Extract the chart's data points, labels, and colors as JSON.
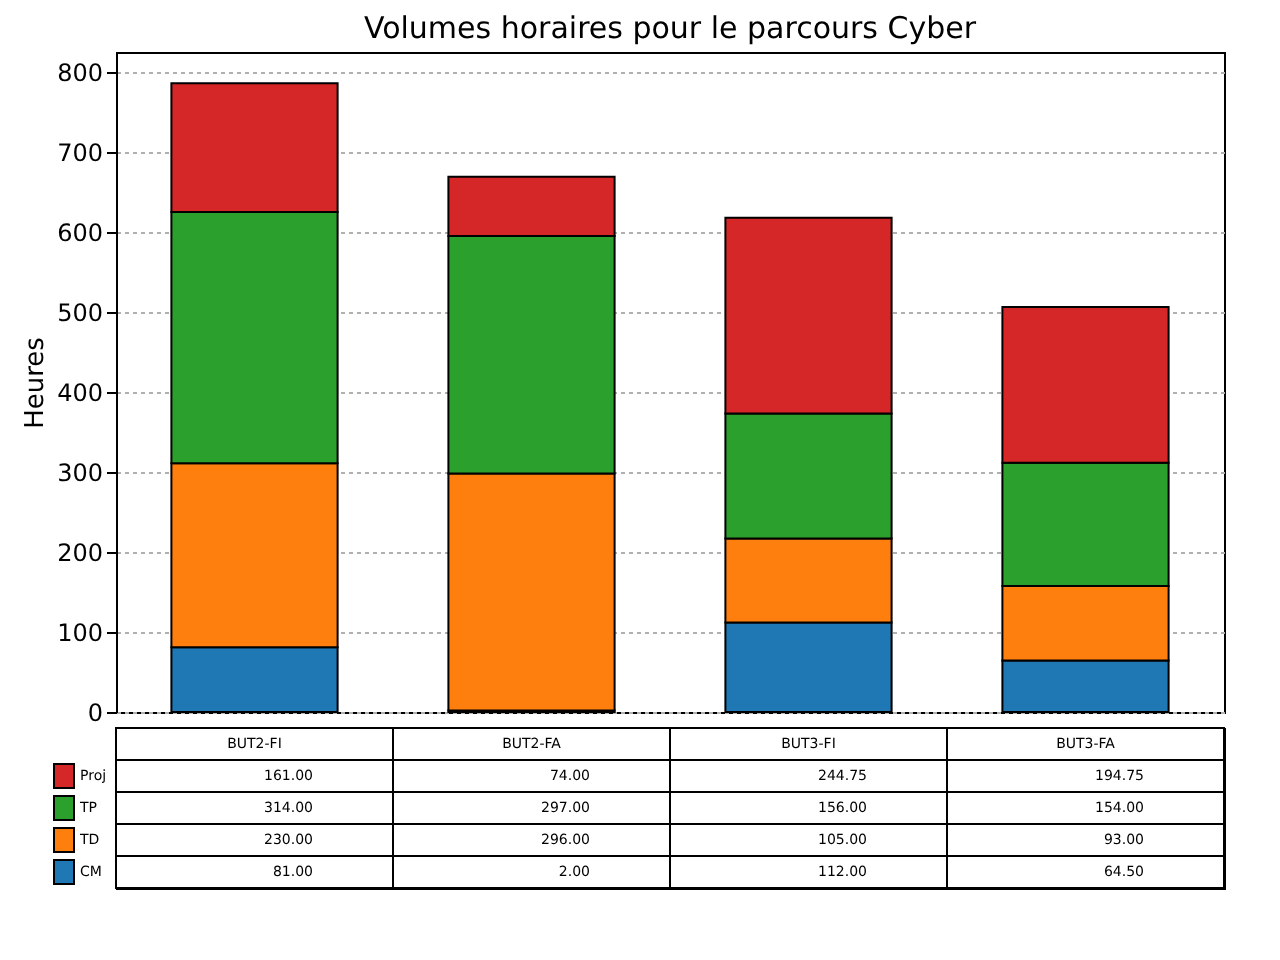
{
  "chart_data": {
    "type": "bar",
    "title": "Volumes horaires pour le parcours Cyber",
    "ylabel": "Heures",
    "categories": [
      "BUT2-FI",
      "BUT2-FA",
      "BUT3-FI",
      "BUT3-FA"
    ],
    "stacked": true,
    "series": [
      {
        "name": "CM",
        "color": "#1f77b4",
        "values": [
          81,
          2,
          112,
          64.5
        ],
        "value_labels": [
          "81.00",
          "2.00",
          "112.00",
          "64.50"
        ]
      },
      {
        "name": "TD",
        "color": "#ff7f0e",
        "values": [
          230,
          296,
          105,
          93
        ],
        "value_labels": [
          "230.00",
          "296.00",
          "105.00",
          "93.00"
        ]
      },
      {
        "name": "TP",
        "color": "#2ca02c",
        "values": [
          314,
          297,
          156,
          154
        ],
        "value_labels": [
          "314.00",
          "297.00",
          "156.00",
          "154.00"
        ]
      },
      {
        "name": "Proj",
        "color": "#d62728",
        "values": [
          161,
          74,
          244.75,
          194.75
        ],
        "value_labels": [
          "161.00",
          "74.00",
          "244.75",
          "194.75"
        ]
      }
    ],
    "ylim": [
      0,
      825
    ],
    "yticks": [
      0,
      100,
      200,
      300,
      400,
      500,
      600,
      700,
      800
    ],
    "grid": "y",
    "legend": "bottom left"
  }
}
